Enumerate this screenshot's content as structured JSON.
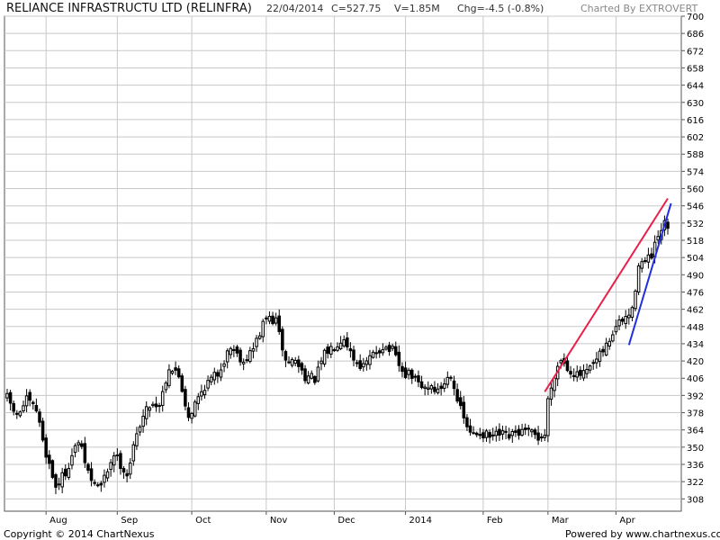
{
  "header": {
    "title": "RELIANCE INFRASTRUCTU LTD (RELINFRA)",
    "date": "22/04/2014",
    "close": "C=527.75",
    "volume": "V=1.85M",
    "change": "Chg=-4.5 (-0.8%)",
    "credit": "Charted By EXTROVERT"
  },
  "footer": {
    "copyright": "Copyright © 2014 ChartNexus",
    "powered": "Powered by www.chartnexus.com"
  },
  "colors": {
    "candle": "#000000",
    "grid": "#c8c8c8",
    "upper_trendline": "#e8204a",
    "lower_trendline": "#2030e0"
  },
  "chart_data": {
    "type": "candlestick",
    "ylim": [
      298,
      700
    ],
    "y_ticks": [
      308,
      322,
      336,
      350,
      364,
      378,
      392,
      406,
      420,
      434,
      448,
      462,
      476,
      490,
      504,
      518,
      532,
      546,
      560,
      574,
      588,
      602,
      616,
      630,
      644,
      658,
      672,
      686,
      700
    ],
    "x_ticks": [
      {
        "label": "Aug",
        "index": 12
      },
      {
        "label": "Sep",
        "index": 34
      },
      {
        "label": "Oct",
        "index": 57
      },
      {
        "label": "Nov",
        "index": 80
      },
      {
        "label": "Dec",
        "index": 101
      },
      {
        "label": "2014",
        "index": 123
      },
      {
        "label": "Feb",
        "index": 147
      },
      {
        "label": "Mar",
        "index": 167
      },
      {
        "label": "Apr",
        "index": 188
      }
    ],
    "num_bars": 205,
    "close_anchors": [
      [
        0,
        390
      ],
      [
        3,
        375
      ],
      [
        6,
        388
      ],
      [
        9,
        380
      ],
      [
        12,
        345
      ],
      [
        15,
        318
      ],
      [
        18,
        330
      ],
      [
        22,
        355
      ],
      [
        26,
        322
      ],
      [
        29,
        318
      ],
      [
        33,
        345
      ],
      [
        37,
        328
      ],
      [
        41,
        370
      ],
      [
        44,
        385
      ],
      [
        47,
        385
      ],
      [
        50,
        415
      ],
      [
        53,
        408
      ],
      [
        56,
        375
      ],
      [
        58,
        385
      ],
      [
        61,
        400
      ],
      [
        65,
        410
      ],
      [
        69,
        432
      ],
      [
        73,
        420
      ],
      [
        76,
        430
      ],
      [
        78,
        443
      ],
      [
        80,
        455
      ],
      [
        83,
        452
      ],
      [
        86,
        420
      ],
      [
        89,
        420
      ],
      [
        92,
        408
      ],
      [
        95,
        405
      ],
      [
        98,
        425
      ],
      [
        101,
        433
      ],
      [
        104,
        440
      ],
      [
        107,
        422
      ],
      [
        110,
        415
      ],
      [
        113,
        425
      ],
      [
        116,
        432
      ],
      [
        119,
        428
      ],
      [
        122,
        410
      ],
      [
        125,
        408
      ],
      [
        128,
        398
      ],
      [
        131,
        400
      ],
      [
        133,
        395
      ],
      [
        137,
        410
      ],
      [
        140,
        380
      ],
      [
        143,
        360
      ],
      [
        146,
        362
      ],
      [
        149,
        358
      ],
      [
        152,
        360
      ],
      [
        155,
        358
      ],
      [
        158,
        362
      ],
      [
        161,
        362
      ],
      [
        164,
        358
      ],
      [
        166,
        360
      ],
      [
        167,
        388
      ],
      [
        169,
        410
      ],
      [
        171,
        422
      ],
      [
        173,
        415
      ],
      [
        176,
        408
      ],
      [
        179,
        410
      ],
      [
        182,
        420
      ],
      [
        185,
        432
      ],
      [
        188,
        448
      ],
      [
        191,
        455
      ],
      [
        193,
        460
      ],
      [
        195,
        500
      ],
      [
        197,
        500
      ],
      [
        199,
        505
      ],
      [
        201,
        520
      ],
      [
        203,
        530
      ],
      [
        204,
        527.75
      ]
    ],
    "trendlines": [
      {
        "name": "upper",
        "from": [
          166,
          395
        ],
        "to": [
          204,
          552
        ]
      },
      {
        "name": "lower",
        "from": [
          192,
          433
        ],
        "to": [
          205,
          548
        ]
      }
    ],
    "grid": true
  }
}
